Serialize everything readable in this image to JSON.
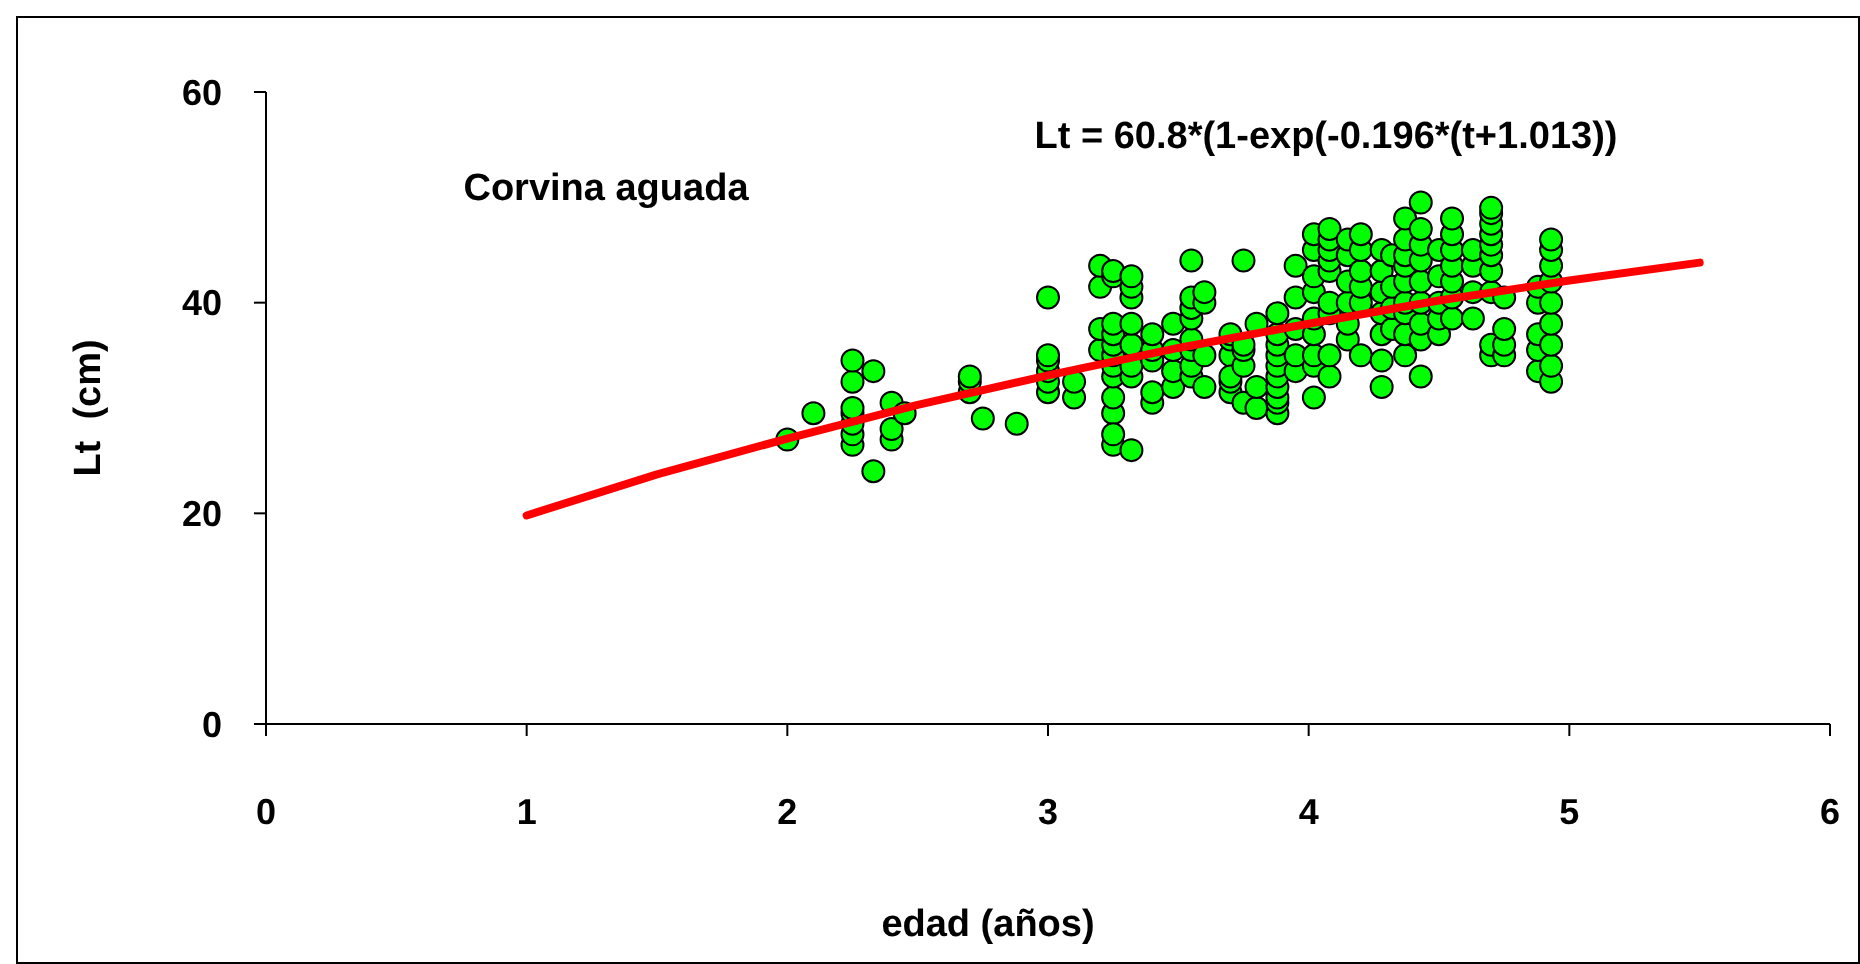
{
  "chart_data": {
    "type": "scatter",
    "xlabel": "edad (años)",
    "ylabel": "Lt  (cm)",
    "annotations": [
      "Corvina aguada",
      "Lt = 60.8*(1-exp(-0.196*(t+1.013))"
    ],
    "xlim": [
      0,
      6
    ],
    "xticks": [
      0,
      1,
      2,
      3,
      4,
      5,
      6
    ],
    "ylim": [
      0,
      60
    ],
    "yticks": [
      0,
      20,
      40,
      60
    ],
    "grid": false,
    "marker": "circle",
    "series": [
      {
        "color": "#00ff00",
        "x": [
          2.0,
          2.1,
          2.25,
          2.25,
          2.25,
          2.25,
          2.25,
          2.25,
          2.25,
          2.33,
          2.33,
          2.4,
          2.4,
          2.4,
          2.45,
          2.7,
          2.7,
          2.7,
          2.75,
          2.88,
          3.0,
          3.0,
          3.0,
          3.0,
          3.0,
          3.0,
          3.1,
          3.1,
          3.2,
          3.2,
          3.2,
          3.2,
          3.25,
          3.25,
          3.25,
          3.25,
          3.25,
          3.25,
          3.25,
          3.25,
          3.25,
          3.25,
          3.25,
          3.25,
          3.32,
          3.32,
          3.32,
          3.32,
          3.32,
          3.32,
          3.32,
          3.32,
          3.4,
          3.4,
          3.4,
          3.4,
          3.4,
          3.48,
          3.48,
          3.48,
          3.48,
          3.55,
          3.55,
          3.55,
          3.55,
          3.55,
          3.55,
          3.55,
          3.55,
          3.6,
          3.6,
          3.6,
          3.6,
          3.7,
          3.7,
          3.7,
          3.7,
          3.7,
          3.7,
          3.75,
          3.75,
          3.75,
          3.75,
          3.75,
          3.8,
          3.8,
          3.8,
          3.88,
          3.88,
          3.88,
          3.88,
          3.88,
          3.88,
          3.88,
          3.88,
          3.88,
          3.88,
          3.95,
          3.95,
          3.95,
          3.95,
          3.95,
          4.02,
          4.02,
          4.02,
          4.02,
          4.02,
          4.02,
          4.02,
          4.02,
          4.02,
          4.08,
          4.08,
          4.08,
          4.08,
          4.08,
          4.08,
          4.08,
          4.08,
          4.08,
          4.15,
          4.15,
          4.15,
          4.15,
          4.15,
          4.15,
          4.2,
          4.2,
          4.2,
          4.2,
          4.2,
          4.2,
          4.28,
          4.28,
          4.28,
          4.28,
          4.28,
          4.28,
          4.28,
          4.32,
          4.32,
          4.32,
          4.32,
          4.37,
          4.37,
          4.37,
          4.37,
          4.37,
          4.37,
          4.37,
          4.37,
          4.37,
          4.43,
          4.43,
          4.43,
          4.43,
          4.43,
          4.43,
          4.43,
          4.43,
          4.43,
          4.5,
          4.5,
          4.5,
          4.5,
          4.5,
          4.55,
          4.55,
          4.55,
          4.55,
          4.55,
          4.55,
          4.55,
          4.63,
          4.63,
          4.63,
          4.63,
          4.7,
          4.7,
          4.7,
          4.7,
          4.7,
          4.7,
          4.7,
          4.7,
          4.7,
          4.7,
          4.75,
          4.75,
          4.75,
          4.75,
          4.88,
          4.88,
          4.88,
          4.88,
          4.88,
          4.93,
          4.93,
          4.93,
          4.93,
          4.93,
          4.93,
          4.93,
          4.93,
          4.93
        ],
        "values": [
          27,
          29.5,
          26.5,
          27.5,
          28.5,
          29.5,
          30,
          32.5,
          34.5,
          24,
          33.5,
          27,
          28,
          30.5,
          29.5,
          31.5,
          32.5,
          33,
          29,
          28.5,
          31.5,
          32.5,
          33.5,
          34.5,
          35,
          40.5,
          31,
          32.5,
          35.5,
          37.5,
          41.5,
          43.5,
          29.5,
          31,
          26.5,
          27.5,
          33,
          34,
          35,
          36,
          37,
          38,
          42.5,
          43,
          26,
          33,
          34,
          36,
          38,
          40.5,
          41.5,
          42.5,
          30.5,
          31.5,
          34.5,
          35.5,
          37,
          32,
          33.5,
          35.5,
          38,
          33,
          34,
          35.5,
          36.5,
          38.5,
          39.5,
          40.5,
          44,
          32,
          35,
          40,
          41,
          31.5,
          32.5,
          35,
          36.5,
          37,
          33,
          30.5,
          34,
          35.5,
          36,
          44,
          30,
          32,
          38,
          29.5,
          30.5,
          31,
          32,
          33,
          34,
          35,
          36,
          37,
          39,
          33.5,
          35,
          37.5,
          40.5,
          43.5,
          31,
          34,
          35,
          37,
          38.5,
          41,
          42.5,
          45,
          46.5,
          33,
          35,
          39,
          40,
          43,
          44,
          45,
          46,
          47,
          36.5,
          38,
          40,
          42,
          44.5,
          46,
          35,
          40,
          41.5,
          43,
          45,
          46.5,
          32,
          34.5,
          37,
          39,
          41,
          43,
          45,
          37.5,
          39.5,
          41.5,
          44.5,
          35,
          37,
          39,
          40,
          42,
          43.5,
          44.5,
          46,
          48,
          33,
          36.5,
          38,
          40,
          42,
          44,
          45.5,
          47,
          49.5,
          37,
          38.5,
          40,
          42.5,
          45,
          38.5,
          40.5,
          42,
          43.5,
          45,
          46.5,
          48,
          38.5,
          41,
          43.5,
          45,
          35,
          36,
          41,
          43,
          44.5,
          45.5,
          46.5,
          47.5,
          48.5,
          49,
          35,
          36,
          37.5,
          40.5,
          33.5,
          35.5,
          37,
          40,
          41.5,
          32.5,
          34,
          36,
          38,
          40,
          42,
          43.5,
          45,
          46
        ]
      },
      {
        "type": "line",
        "color": "#ff0000",
        "marker": "none",
        "x": [
          1,
          1.5,
          2,
          2.5,
          3,
          3.5,
          4,
          4.5,
          5,
          5.5
        ],
        "values": [
          19.8,
          23.7,
          27.1,
          30.3,
          33.1,
          35.7,
          38.0,
          40.2,
          42.1,
          43.8
        ]
      }
    ]
  }
}
